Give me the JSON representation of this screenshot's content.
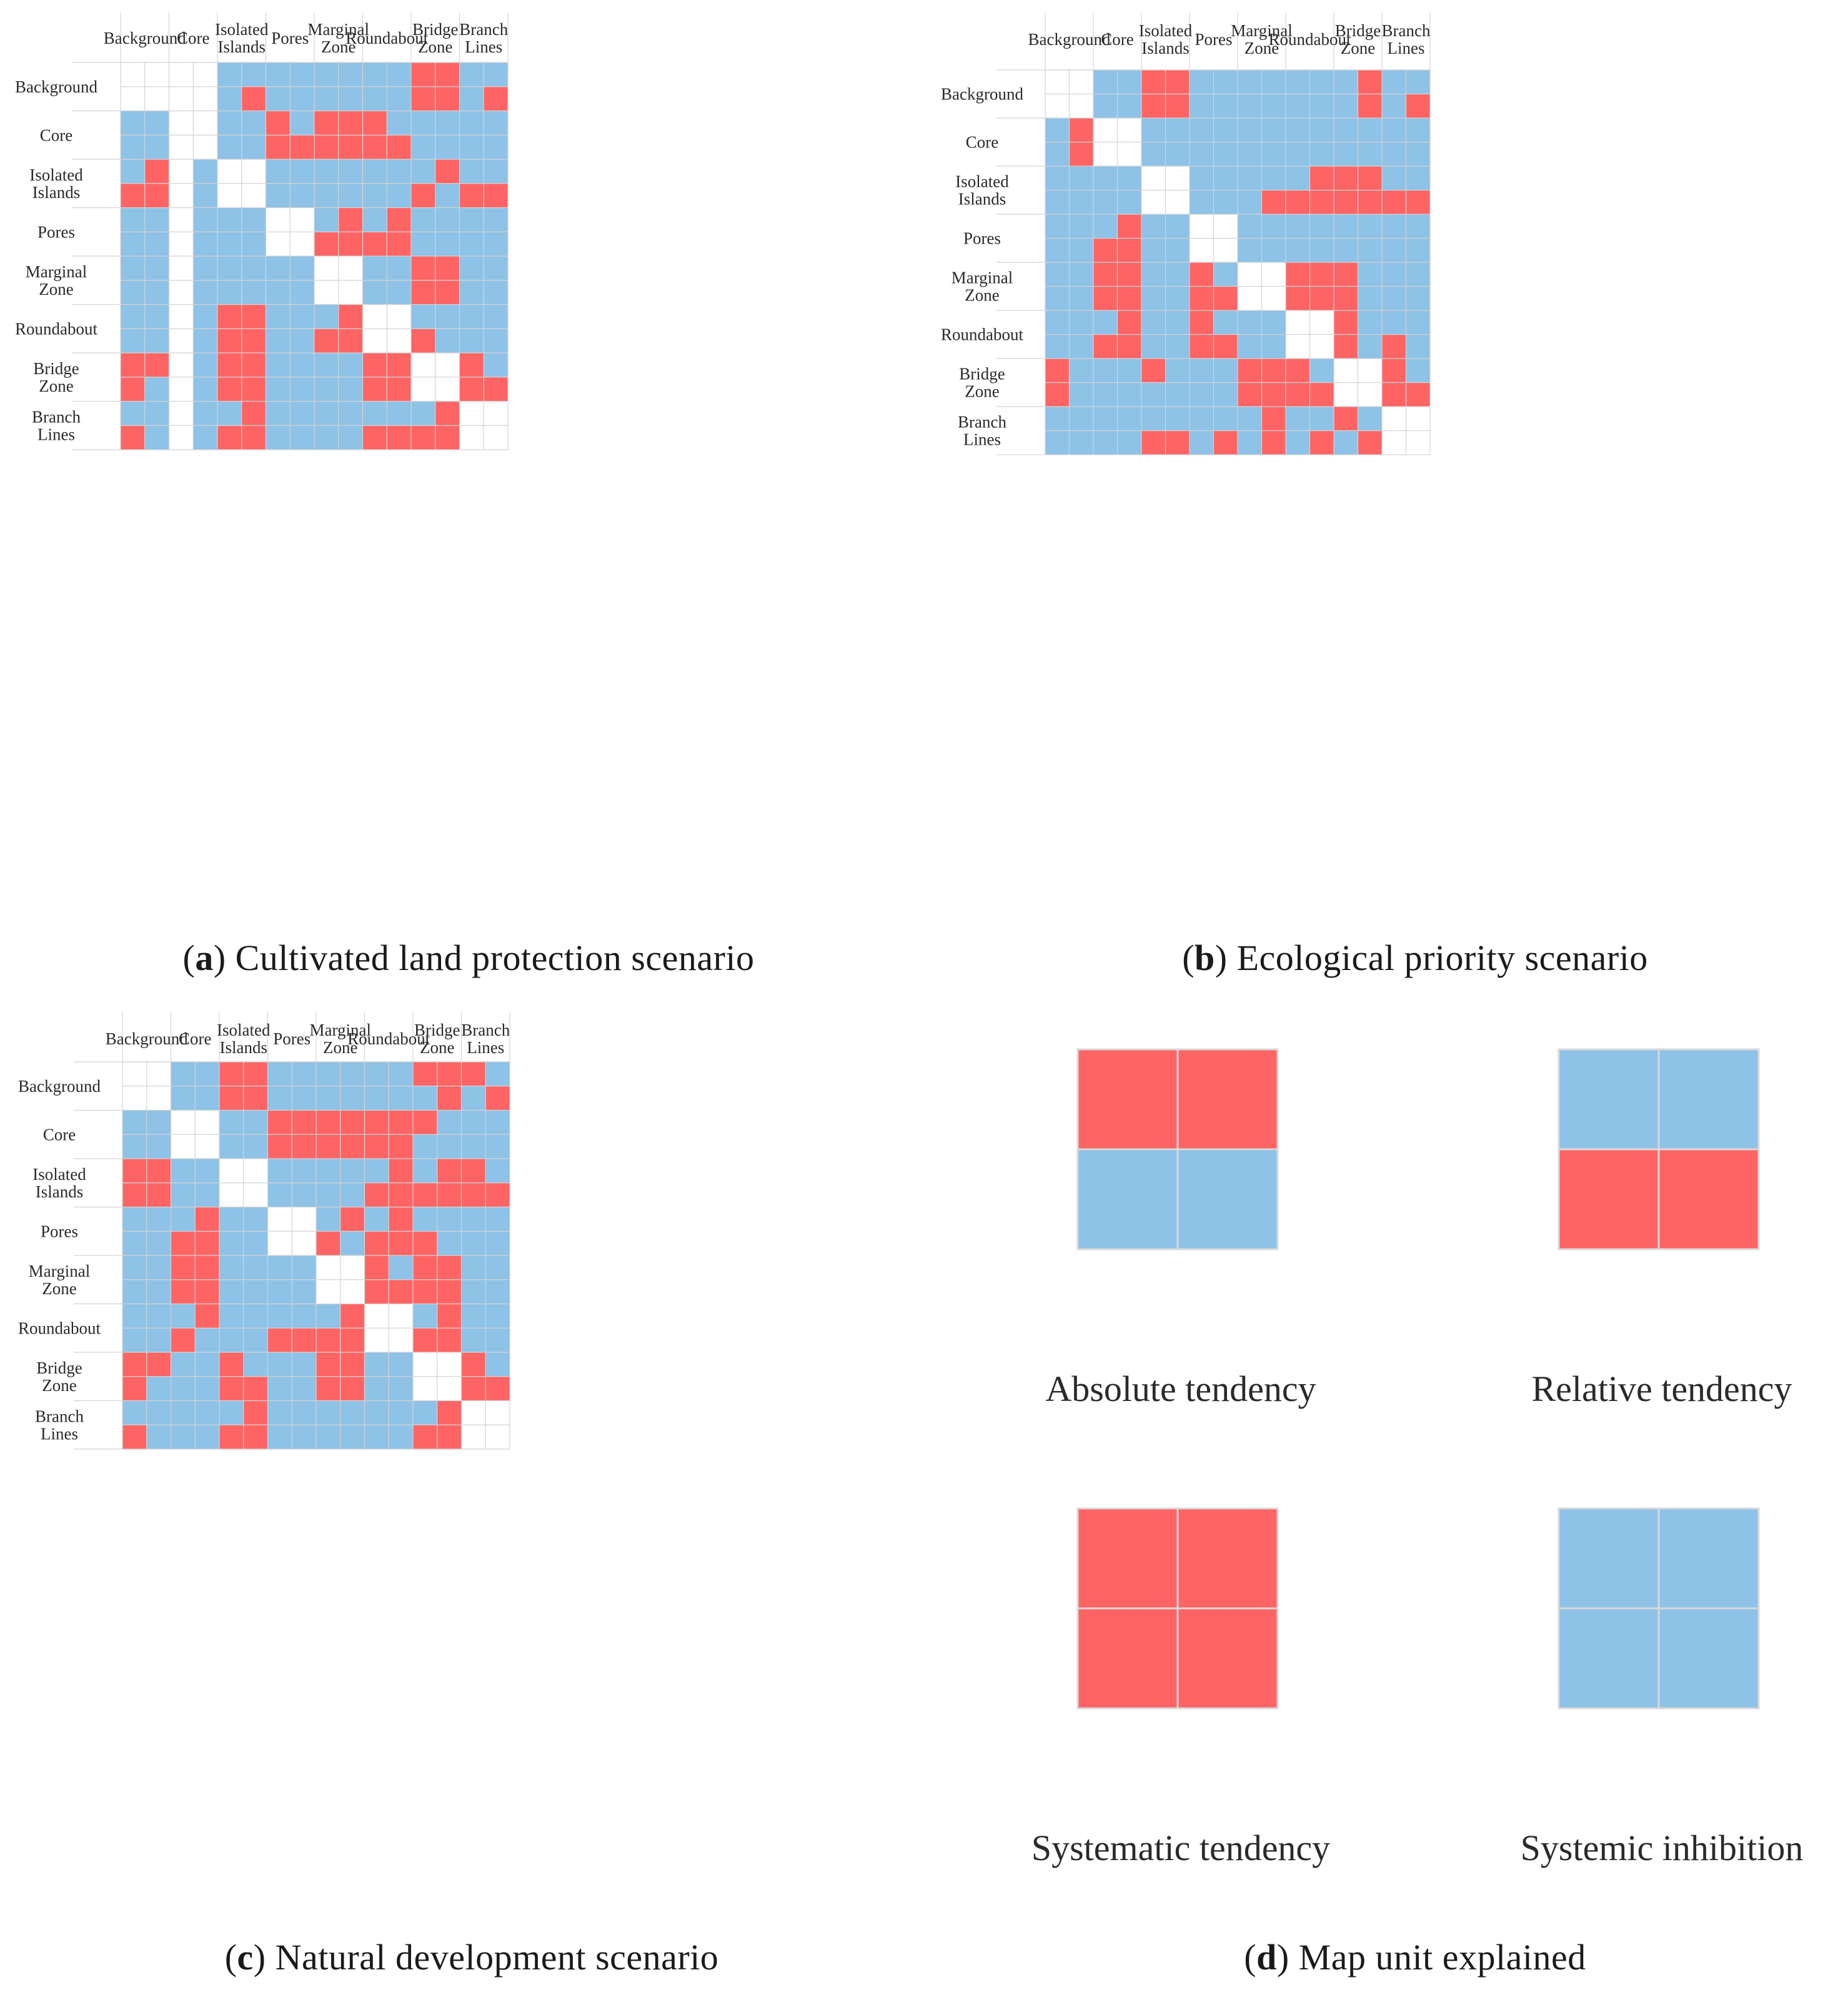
{
  "colors": {
    "tendency": "#fe6464",
    "inhibition": "#8ec2e7",
    "empty": "#ffffff",
    "grid": "#d4d4d4"
  },
  "chart_data": [
    {
      "type": "heatmap",
      "id": "a",
      "caption_letter": "a",
      "caption_text": "Cultivated land protection scenario",
      "categories": [
        "Background",
        "Core",
        "Isolated Islands",
        "Pores",
        "Marginal Zone",
        "Roundabout",
        "Bridge Zone",
        "Branch Lines"
      ],
      "encoding": "16x16 sub-cells; R=tendency (red), B=inhibition (blue), W=diagonal (white)",
      "grid": [
        "WWWWBBBBBBBBRRBB",
        "WWWWBRBBBBBBRRBR",
        "BBWWBBRBRRRBBBBB",
        "BBWWBBRRRRRRBBBB",
        "BRWBWWBBBBBBBRBB",
        "RRWBWWBBBBBBRBRR",
        "BBWBBBWWBRBRBBBB",
        "BBWBBBWWRRRRBBBB",
        "BBWBBBBBWWBBRRBB",
        "BBWBBBBBWWBBRRBB",
        "BBWBRRBBBRWWBBBB",
        "BBWBRRBBRRWWRBBB",
        "RRWBRRBBBBRRWWRB",
        "RBWBRRBBBBRRWWRR",
        "BBWBBRBBBBBBBRWW",
        "RBWBRRBBBBRRRRWW"
      ]
    },
    {
      "type": "heatmap",
      "id": "b",
      "caption_letter": "b",
      "caption_text": "Ecological priority scenario",
      "categories": [
        "Background",
        "Core",
        "Isolated Islands",
        "Pores",
        "Marginal Zone",
        "Roundabout",
        "Bridge Zone",
        "Branch Lines"
      ],
      "encoding": "16x16 sub-cells; R=tendency (red), B=inhibition (blue), W=diagonal (white)",
      "grid": [
        "WWBBRRBBBBBBBRBB",
        "WWBBRRBBBBBBBRBR",
        "BRWWBBBBBBBBBBBB",
        "BRWWBBBBBBBBBBBB",
        "BBBBWWBBBBBRRRBB",
        "BBBBWWBBBRRRRRRR",
        "BBBRBBWWBBBBBBBB",
        "BBRRBBWWBBBBBBBB",
        "BBRRBBRBWWRRRBBB",
        "BBRRBBRRWWRRRBBB",
        "BBBRBBRBBBWWRBBB",
        "BBRRBBRRBBWWRBRB",
        "RBBBRBBBRRRBWWRB",
        "RBBBBBBBRRRRWWRR",
        "BBBBBBBBBRBBRBWW",
        "BBBBRRBRBRBRBRWW"
      ]
    },
    {
      "type": "heatmap",
      "id": "c",
      "caption_letter": "c",
      "caption_text": "Natural development scenario",
      "categories": [
        "Background",
        "Core",
        "Isolated Islands",
        "Pores",
        "Marginal Zone",
        "Roundabout",
        "Bridge Zone",
        "Branch Lines"
      ],
      "encoding": "16x16 sub-cells; R=tendency (red), B=inhibition (blue), W=diagonal (white)",
      "grid": [
        "WWBBRRBBBBBBRRRB",
        "WWBBRRBBBBBBBRBR",
        "BBWWBBRRRRRRRBBB",
        "BBWWBBRRRRRRBBBB",
        "RRBBWWBBBBBRBRRB",
        "RRBBWWBBBBRRRRRR",
        "BBBRBBWWBRBRBBBB",
        "BBRRBBWWRBRRRBBB",
        "BBRRBBBBWWRBRRBB",
        "BBRRBBBBWWRRRRBB",
        "BBBRBBBBBRWWBRBB",
        "BBRBBBRRRRWWRRBB",
        "RRBBRBBBRRBBWWRB",
        "RBBBRRBBRRBBWWRR",
        "BBBBBRBBBBBBBRWW",
        "RBBBRRBBBBBBRRWW"
      ]
    }
  ],
  "legend": {
    "caption_letter": "d",
    "caption_text": "Map unit explained",
    "units": [
      {
        "label": "Absolute tendency",
        "cells": [
          "RR",
          "BB"
        ]
      },
      {
        "label": "Relative tendency",
        "cells": [
          "BB",
          "RR"
        ]
      },
      {
        "label": "Systematic tendency",
        "cells": [
          "RR",
          "RR"
        ]
      },
      {
        "label": "Systemic inhibition",
        "cells": [
          "BB",
          "BB"
        ]
      }
    ]
  }
}
